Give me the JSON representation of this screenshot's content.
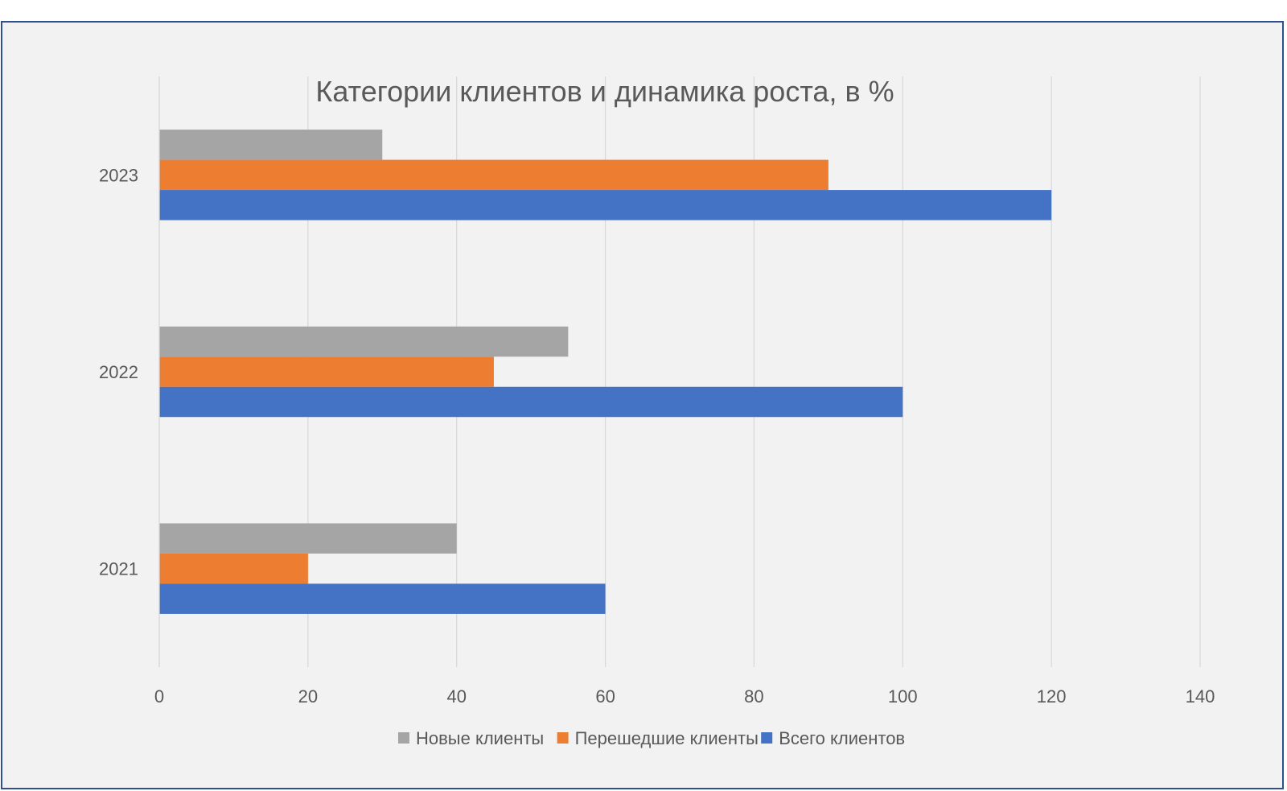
{
  "chart_data": {
    "type": "bar",
    "orientation": "horizontal",
    "title": "Категории клиентов и динамика роста, в %",
    "xlabel": "",
    "ylabel": "",
    "categories": [
      "2021",
      "2022",
      "2023"
    ],
    "series": [
      {
        "name": "Новые клиенты",
        "color": "#a5a5a5",
        "values": [
          40,
          55,
          30
        ]
      },
      {
        "name": "Перешедшие клиенты",
        "color": "#ed7d31",
        "values": [
          20,
          45,
          90
        ]
      },
      {
        "name": "Всего клиентов",
        "color": "#4472c4",
        "values": [
          60,
          100,
          120
        ]
      }
    ],
    "xlim": [
      0,
      140
    ],
    "x_ticks": [
      "0",
      "20",
      "40",
      "60",
      "80",
      "100",
      "120",
      "140"
    ],
    "grid": true,
    "legend_position": "bottom"
  }
}
